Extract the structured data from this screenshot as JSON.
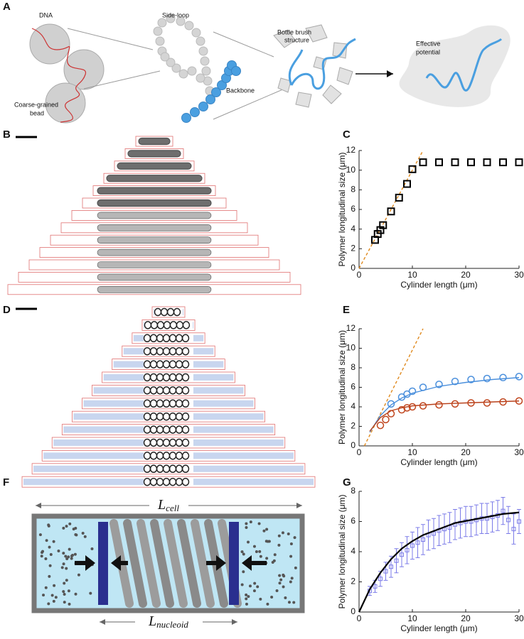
{
  "panels": [
    "A",
    "B",
    "C",
    "D",
    "E",
    "F",
    "G"
  ],
  "schematic": {
    "dna": "DNA",
    "side_loop": "Side-loop",
    "bottle_brush": [
      "Bottle brush",
      "structure"
    ],
    "effective_potential": [
      "Effective",
      "potential"
    ],
    "coarse_grained_bead": [
      "Coarse-grained",
      "bead"
    ],
    "backbone": "Backbone",
    "l_cell": {
      "symbol": "L",
      "subscript": "cell"
    },
    "l_nucleoid": {
      "symbol": "L",
      "subscript": "nucleoid"
    }
  },
  "chart_data": [
    {
      "type": "scatter",
      "xlabel": "Cylinder length (μm)",
      "ylabel": "Polymer longitudinal size (μm)",
      "xlim": [
        0,
        30
      ],
      "ylim": [
        0,
        12
      ],
      "xticks": [
        0,
        10,
        20,
        30
      ],
      "yticks": [
        0,
        2,
        4,
        6,
        8,
        10,
        12
      ],
      "series": [
        {
          "type": "line",
          "color": "#e08a1e",
          "dashed": true,
          "x": [
            0,
            12
          ],
          "values": [
            0,
            12
          ]
        },
        {
          "type": "scatter",
          "marker": "square",
          "color": "#000000",
          "x": [
            3,
            3.5,
            4,
            4.5,
            6,
            7.5,
            9,
            10,
            12,
            15,
            18,
            21,
            24,
            27,
            30
          ],
          "values": [
            2.9,
            3.5,
            3.9,
            4.4,
            5.8,
            7.2,
            8.6,
            10.1,
            10.8,
            10.8,
            10.8,
            10.8,
            10.8,
            10.8,
            10.8
          ]
        }
      ]
    },
    {
      "type": "scatter",
      "xlabel": "Cylinder length (μm)",
      "ylabel": "Polymer longitudinal size (μm)",
      "xlim": [
        0,
        30
      ],
      "ylim": [
        0,
        12
      ],
      "xticks": [
        0,
        10,
        20,
        30
      ],
      "yticks": [
        0,
        2,
        4,
        6,
        8,
        10,
        12
      ],
      "series": [
        {
          "type": "line",
          "color": "#e08a1e",
          "dashed": true,
          "x": [
            1,
            12
          ],
          "values": [
            0,
            12
          ]
        },
        {
          "type": "line",
          "color": "#4a8fdc",
          "x": [
            2,
            4,
            6,
            8,
            10,
            15,
            20,
            25,
            30
          ],
          "values": [
            1.4,
            3.1,
            4.2,
            4.9,
            5.4,
            6.1,
            6.5,
            6.8,
            7.0
          ]
        },
        {
          "type": "line",
          "color": "#b8401a",
          "x": [
            2,
            4,
            6,
            8,
            10,
            15,
            20,
            25,
            30
          ],
          "values": [
            1.5,
            2.9,
            3.6,
            3.9,
            4.1,
            4.3,
            4.4,
            4.5,
            4.6
          ]
        },
        {
          "type": "scatter",
          "marker": "circle",
          "color": "#4a8fdc",
          "x": [
            6,
            8,
            9,
            10,
            12,
            15,
            18,
            21,
            24,
            27,
            30
          ],
          "values": [
            4.3,
            5.0,
            5.3,
            5.6,
            6.0,
            6.3,
            6.6,
            6.8,
            6.9,
            7.0,
            7.1
          ]
        },
        {
          "type": "scatter",
          "marker": "circle",
          "color": "#c0461e",
          "x": [
            4,
            5,
            6,
            8,
            9,
            10,
            12,
            15,
            18,
            21,
            24,
            27,
            30
          ],
          "values": [
            2.1,
            2.7,
            3.3,
            3.7,
            3.9,
            4.0,
            4.1,
            4.2,
            4.3,
            4.4,
            4.4,
            4.5,
            4.6
          ]
        }
      ]
    },
    {
      "type": "scatter",
      "xlabel": "Cylinder length (μm)",
      "ylabel": "Polymer longitudinal size (μm)",
      "xlim": [
        0,
        30
      ],
      "ylim": [
        0,
        8
      ],
      "xticks": [
        0,
        10,
        20,
        30
      ],
      "yticks": [
        0,
        2,
        4,
        6,
        8
      ],
      "series": [
        {
          "type": "scatter",
          "marker": "square",
          "color": "#7b7be8",
          "x": [
            2,
            3,
            4,
            5,
            6,
            7,
            8,
            9,
            10,
            11,
            12,
            13,
            14,
            15,
            16,
            17,
            18,
            19,
            20,
            21,
            22,
            23,
            24,
            25,
            26,
            27,
            28,
            29,
            30
          ],
          "values": [
            1.4,
            1.7,
            2.2,
            2.7,
            3.0,
            3.4,
            3.8,
            4.1,
            4.4,
            4.6,
            4.8,
            5.1,
            5.2,
            5.4,
            5.5,
            5.6,
            5.8,
            5.9,
            6.0,
            6.0,
            6.1,
            6.2,
            6.2,
            6.3,
            6.4,
            6.7,
            6.1,
            5.5,
            6.0
          ],
          "errors": [
            0.3,
            0.4,
            0.5,
            0.6,
            0.7,
            0.8,
            0.8,
            0.9,
            0.9,
            1.0,
            1.0,
            1.0,
            1.0,
            1.0,
            1.0,
            1.0,
            1.0,
            1.0,
            1.0,
            1.0,
            1.0,
            1.0,
            1.0,
            1.0,
            1.0,
            0.9,
            0.9,
            1.0,
            0.8
          ]
        },
        {
          "type": "line",
          "color": "#000000",
          "width": 2.2,
          "x": [
            0,
            2,
            4,
            6,
            8,
            10,
            12,
            15,
            18,
            21,
            24,
            27,
            30
          ],
          "values": [
            0,
            1.5,
            2.6,
            3.5,
            4.2,
            4.7,
            5.1,
            5.5,
            5.9,
            6.1,
            6.3,
            6.5,
            6.6
          ]
        }
      ]
    }
  ]
}
